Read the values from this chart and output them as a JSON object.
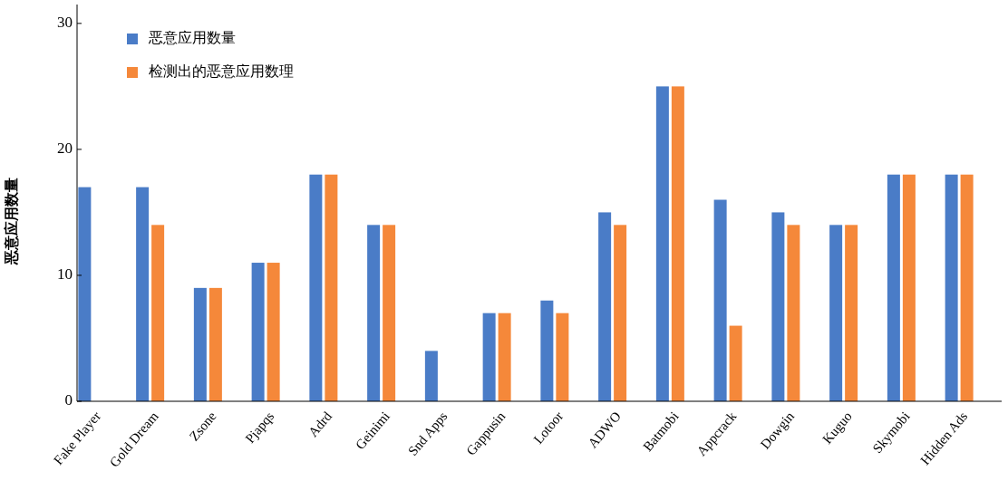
{
  "chart_data": {
    "type": "bar",
    "ylabel": "恶意应用数量",
    "categories": [
      "Fake Player",
      "Gold Dream",
      "Zsone",
      "Pjapqs",
      "Adrd",
      "Geinimi",
      "Snd Apps",
      "Gappusin",
      "Lotoor",
      "ADWO",
      "Batmobi",
      "Appcrack",
      "Dowgin",
      "Kuguo",
      "Skymobi",
      "Hidden Ads"
    ],
    "series": [
      {
        "name": "恶意应用数量",
        "color": "#4a7cc7",
        "values": [
          17,
          17,
          9,
          11,
          18,
          14,
          4,
          7,
          8,
          15,
          25,
          16,
          15,
          14,
          18,
          18
        ]
      },
      {
        "name": "检测出的恶意应用数理",
        "color": "#f5883a",
        "values": [
          0,
          14,
          9,
          11,
          18,
          14,
          0,
          7,
          7,
          14,
          25,
          6,
          14,
          14,
          18,
          18
        ]
      }
    ],
    "ylim": [
      0,
      31.5
    ],
    "yticks": [
      0,
      10,
      20,
      30
    ],
    "grid": false,
    "legend": "top left"
  }
}
